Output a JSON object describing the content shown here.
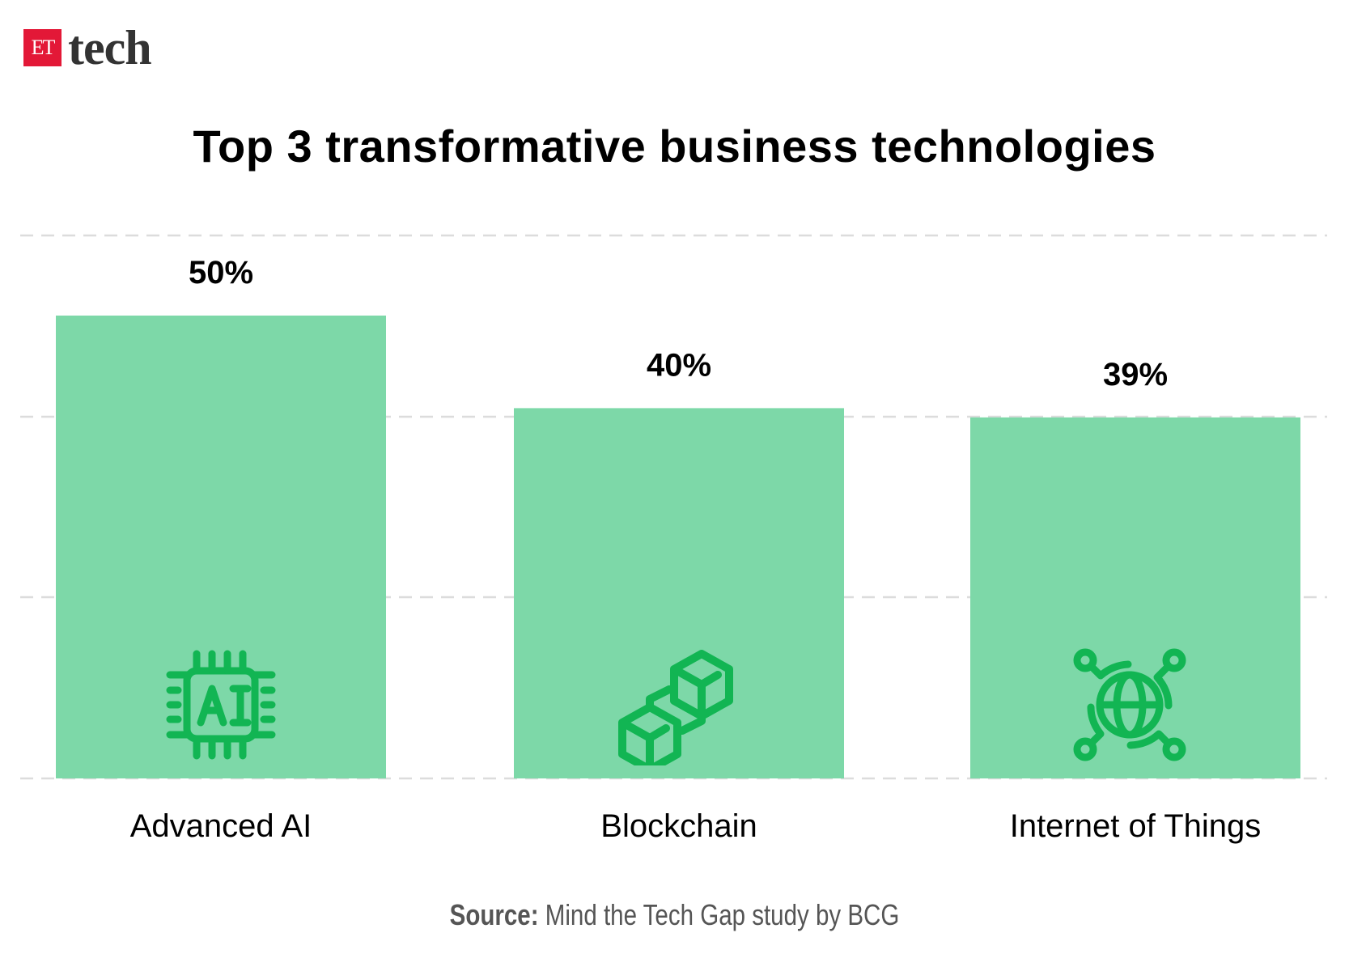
{
  "logo": {
    "et": "ET",
    "tech": "tech"
  },
  "chart_data": {
    "type": "bar",
    "title": "Top 3 transformative business technologies",
    "categories": [
      "Advanced AI",
      "Blockchain",
      "Internet of Things"
    ],
    "values": [
      50,
      40,
      39
    ],
    "value_labels": [
      "50%",
      "40%",
      "39%"
    ],
    "icons": [
      "ai-chip-icon",
      "blockchain-cubes-icon",
      "iot-globe-icon"
    ],
    "grid": true,
    "bar_color": "#7dd8a8",
    "icon_color": "#12b553"
  },
  "source": {
    "label": "Source:",
    "text": "Mind the Tech Gap study by BCG"
  }
}
